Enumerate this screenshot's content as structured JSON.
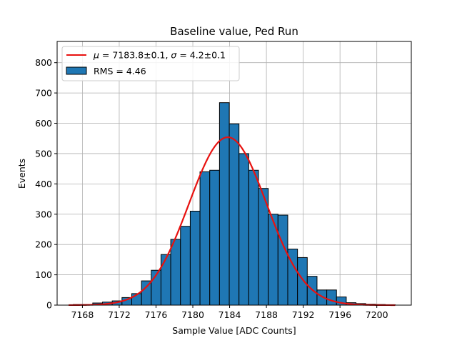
{
  "chart_data": {
    "type": "bar",
    "title": "Baseline value, Ped Run",
    "xlabel": "Sample Value [ADC Counts]",
    "ylabel": "Events",
    "xlim": [
      7165.25,
      7203.75
    ],
    "ylim": [
      0,
      870
    ],
    "grid": true,
    "legend_position": "top-left",
    "xticks": [
      7168,
      7172,
      7176,
      7180,
      7184,
      7188,
      7192,
      7196,
      7200
    ],
    "yticks": [
      0,
      100,
      200,
      300,
      400,
      500,
      600,
      700,
      800
    ],
    "histogram": {
      "name": "RMS = 4.46",
      "color": "#1f77b4",
      "edge_color": "#000000",
      "bin_edges": [
        7167.0,
        7168.06,
        7169.12,
        7170.18,
        7171.24,
        7172.3,
        7173.36,
        7174.42,
        7175.48,
        7176.54,
        7177.6,
        7178.66,
        7179.72,
        7180.78,
        7181.84,
        7182.9,
        7183.96,
        7185.02,
        7186.08,
        7187.14,
        7188.2,
        7189.26,
        7190.32,
        7191.38,
        7192.44,
        7193.5,
        7194.56,
        7195.62,
        7196.68,
        7197.74,
        7198.8,
        7199.86,
        7200.92,
        7202.0
      ],
      "counts": [
        2,
        2,
        7,
        10,
        14,
        25,
        38,
        80,
        115,
        167,
        217,
        260,
        310,
        440,
        445,
        668,
        598,
        500,
        445,
        385,
        300,
        297,
        185,
        157,
        95,
        50,
        50,
        27,
        8,
        5,
        3,
        2,
        1
      ]
    },
    "fit": {
      "name": "μ = 7183.8±0.1, σ = 4.2±0.1",
      "label_mu": "μ",
      "label_sigma": "σ",
      "label_mu_value": " = 7183.8±0.1, ",
      "label_sigma_value": " = 4.2±0.1",
      "color": "#e8110f",
      "mu": 7183.8,
      "sigma": 4.2,
      "amplitude": 554,
      "x_range": [
        7166.5,
        7202.0
      ]
    }
  }
}
